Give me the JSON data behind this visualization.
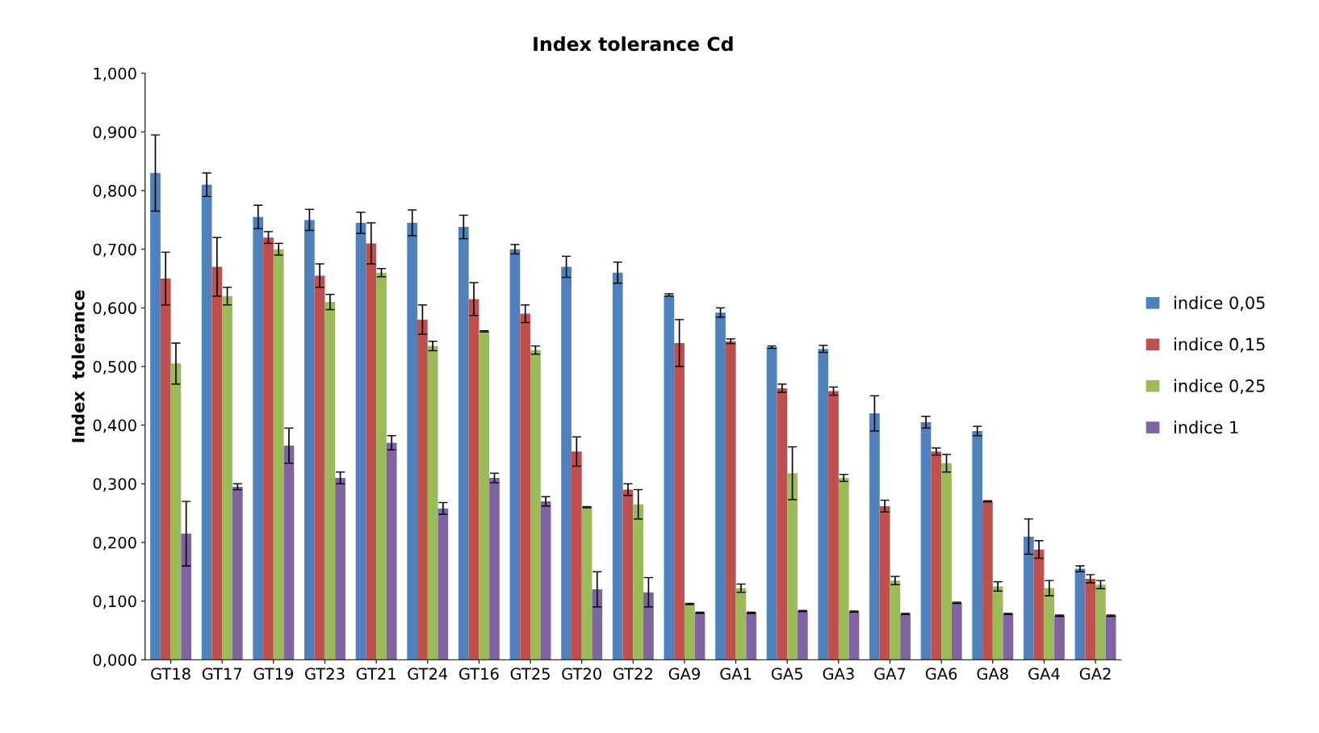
{
  "chart_data": {
    "type": "bar",
    "title": "Index tolerance Cd",
    "ylabel": "Index  tolerance",
    "categories": [
      "GT18",
      "GT17",
      "GT19",
      "GT23",
      "GT21",
      "GT24",
      "GT16",
      "GT25",
      "GT20",
      "GT22",
      "GA9",
      "GA1",
      "GA5",
      "GA3",
      "GA7",
      "GA6",
      "GA8",
      "GA4",
      "GA2"
    ],
    "ylim": [
      0,
      1
    ],
    "yticks": [
      {
        "value": 0,
        "label": "0,000"
      },
      {
        "value": 0.1,
        "label": "0,100"
      },
      {
        "value": 0.2,
        "label": "0,200"
      },
      {
        "value": 0.3,
        "label": "0,300"
      },
      {
        "value": 0.4,
        "label": "0,400"
      },
      {
        "value": 0.5,
        "label": "0,500"
      },
      {
        "value": 0.6,
        "label": "0,600"
      },
      {
        "value": 0.7,
        "label": "0,700"
      },
      {
        "value": 0.8,
        "label": "0,800"
      },
      {
        "value": 0.9,
        "label": "0,900"
      },
      {
        "value": 1,
        "label": "1,000"
      }
    ],
    "grid": false,
    "legend": "right",
    "series": [
      {
        "name": "indice 0,05",
        "color": "#4f81bd",
        "values": [
          0.83,
          0.81,
          0.755,
          0.75,
          0.745,
          0.745,
          0.738,
          0.7,
          0.67,
          0.66,
          0.622,
          0.592,
          0.533,
          0.53,
          0.42,
          0.405,
          0.39,
          0.21,
          0.155
        ],
        "errors": [
          0.065,
          0.02,
          0.02,
          0.018,
          0.018,
          0.022,
          0.02,
          0.008,
          0.018,
          0.018,
          0.002,
          0.008,
          0.002,
          0.006,
          0.03,
          0.01,
          0.008,
          0.03,
          0.005
        ]
      },
      {
        "name": "indice 0,15",
        "color": "#c0504d",
        "values": [
          0.65,
          0.67,
          0.72,
          0.655,
          0.71,
          0.58,
          0.615,
          0.59,
          0.355,
          0.29,
          0.54,
          0.543,
          0.463,
          0.458,
          0.262,
          0.355,
          0.27,
          0.188,
          0.138
        ],
        "errors": [
          0.045,
          0.05,
          0.01,
          0.02,
          0.035,
          0.025,
          0.028,
          0.015,
          0.025,
          0.01,
          0.04,
          0.004,
          0.007,
          0.007,
          0.01,
          0.006,
          0.001,
          0.015,
          0.007
        ]
      },
      {
        "name": "indice 0,25",
        "color": "#9bbb59",
        "values": [
          0.505,
          0.62,
          0.7,
          0.61,
          0.66,
          0.535,
          0.56,
          0.528,
          0.26,
          0.265,
          0.095,
          0.122,
          0.318,
          0.31,
          0.135,
          0.335,
          0.125,
          0.122,
          0.128
        ],
        "errors": [
          0.035,
          0.015,
          0.01,
          0.013,
          0.007,
          0.008,
          0.001,
          0.007,
          0.001,
          0.025,
          0.001,
          0.007,
          0.045,
          0.006,
          0.007,
          0.015,
          0.008,
          0.013,
          0.007
        ]
      },
      {
        "name": "indice 1",
        "color": "#8064a2",
        "values": [
          0.215,
          0.295,
          0.365,
          0.31,
          0.37,
          0.258,
          0.31,
          0.27,
          0.12,
          0.115,
          0.08,
          0.08,
          0.083,
          0.082,
          0.078,
          0.097,
          0.078,
          0.075,
          0.075
        ],
        "errors": [
          0.055,
          0.005,
          0.03,
          0.01,
          0.012,
          0.01,
          0.008,
          0.008,
          0.03,
          0.025,
          0.001,
          0.001,
          0.001,
          0.001,
          0.001,
          0.001,
          0.001,
          0.001,
          0.001
        ]
      }
    ]
  }
}
